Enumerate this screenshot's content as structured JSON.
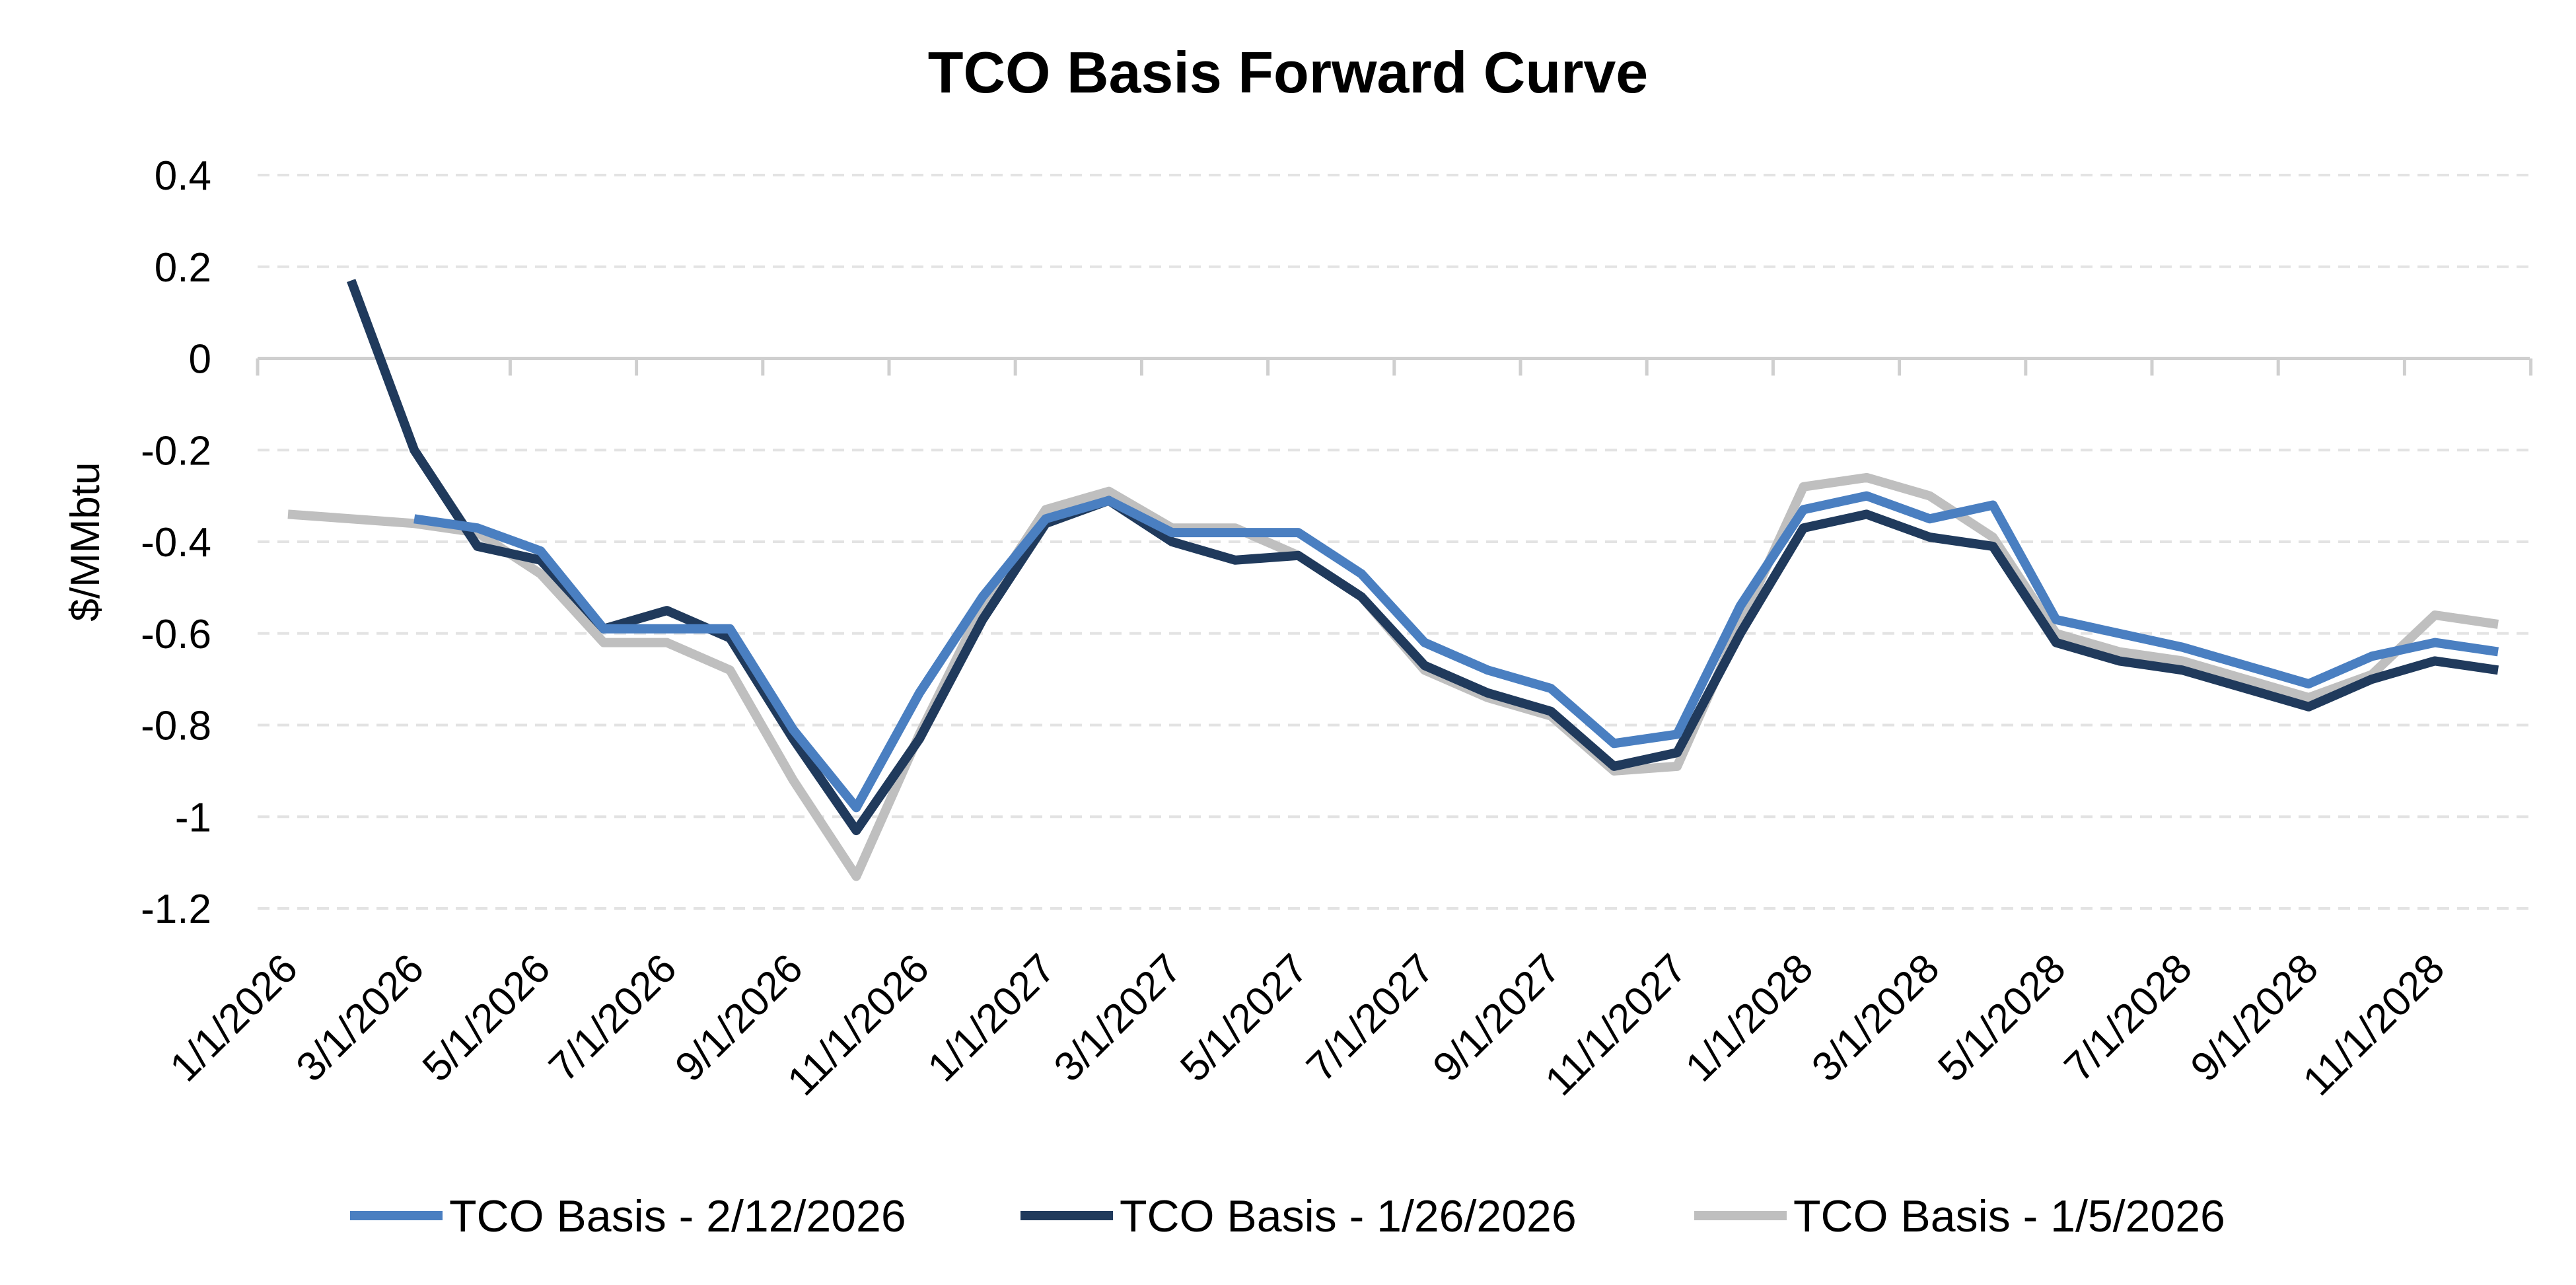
{
  "chart_data": {
    "type": "line",
    "title": "TCO Basis Forward Curve",
    "xlabel": "",
    "ylabel": "$/MMbtu",
    "ylim": [
      -1.2,
      0.4
    ],
    "yticks": [
      0.4,
      0.2,
      0,
      -0.2,
      -0.4,
      -0.6,
      -0.8,
      -1,
      -1.2
    ],
    "ytick_labels": [
      "0.4",
      "0.2",
      "0",
      "-0.2",
      "-0.4",
      "-0.6",
      "-0.8",
      "-1",
      "-1.2"
    ],
    "grid": "horizontal dashed",
    "legend_position": "bottom",
    "x": [
      "1/1/2026",
      "2/1/2026",
      "3/1/2026",
      "4/1/2026",
      "5/1/2026",
      "6/1/2026",
      "7/1/2026",
      "8/1/2026",
      "9/1/2026",
      "10/1/2026",
      "11/1/2026",
      "12/1/2026",
      "1/1/2027",
      "2/1/2027",
      "3/1/2027",
      "4/1/2027",
      "5/1/2027",
      "6/1/2027",
      "7/1/2027",
      "8/1/2027",
      "9/1/2027",
      "10/1/2027",
      "11/1/2027",
      "12/1/2027",
      "1/1/2028",
      "2/1/2028",
      "3/1/2028",
      "4/1/2028",
      "5/1/2028",
      "6/1/2028",
      "7/1/2028",
      "8/1/2028",
      "9/1/2028",
      "10/1/2028",
      "11/1/2028",
      "12/1/2028"
    ],
    "xtick_labels": [
      "1/1/2026",
      "3/1/2026",
      "5/1/2026",
      "7/1/2026",
      "9/1/2026",
      "11/1/2026",
      "1/1/2027",
      "3/1/2027",
      "5/1/2027",
      "7/1/2027",
      "9/1/2027",
      "11/1/2027",
      "1/1/2028",
      "3/1/2028",
      "5/1/2028",
      "7/1/2028",
      "9/1/2028",
      "11/1/2028"
    ],
    "series": [
      {
        "name": "TCO Basis - 2/12/2026",
        "color": "#4a7fc1",
        "values": [
          null,
          null,
          -0.35,
          -0.37,
          -0.42,
          -0.59,
          -0.59,
          -0.59,
          -0.81,
          -0.98,
          -0.73,
          -0.52,
          -0.35,
          -0.31,
          -0.38,
          -0.38,
          -0.38,
          -0.47,
          -0.62,
          -0.68,
          -0.72,
          -0.84,
          -0.82,
          -0.54,
          -0.33,
          -0.3,
          -0.35,
          -0.32,
          -0.57,
          -0.6,
          -0.63,
          -0.67,
          -0.71,
          -0.65,
          -0.62,
          -0.64
        ]
      },
      {
        "name": "TCO Basis - 1/26/2026",
        "color": "#203a5c",
        "values": [
          null,
          0.17,
          -0.2,
          -0.41,
          -0.44,
          -0.59,
          -0.55,
          -0.61,
          -0.83,
          -1.03,
          -0.83,
          -0.57,
          -0.36,
          -0.31,
          -0.4,
          -0.44,
          -0.43,
          -0.52,
          -0.67,
          -0.73,
          -0.77,
          -0.89,
          -0.86,
          -0.6,
          -0.37,
          -0.34,
          -0.39,
          -0.41,
          -0.62,
          -0.66,
          -0.68,
          -0.72,
          -0.76,
          -0.7,
          -0.66,
          -0.68
        ]
      },
      {
        "name": "TCO Basis - 1/5/2026",
        "color": "#bfbfbf",
        "values": [
          -0.34,
          -0.35,
          -0.36,
          -0.38,
          -0.47,
          -0.62,
          -0.62,
          -0.68,
          -0.92,
          -1.13,
          -0.82,
          -0.54,
          -0.33,
          -0.29,
          -0.37,
          -0.37,
          -0.43,
          -0.52,
          -0.68,
          -0.74,
          -0.78,
          -0.9,
          -0.89,
          -0.58,
          -0.28,
          -0.26,
          -0.3,
          -0.39,
          -0.6,
          -0.64,
          -0.66,
          -0.7,
          -0.74,
          -0.69,
          -0.56,
          -0.58
        ]
      }
    ]
  }
}
